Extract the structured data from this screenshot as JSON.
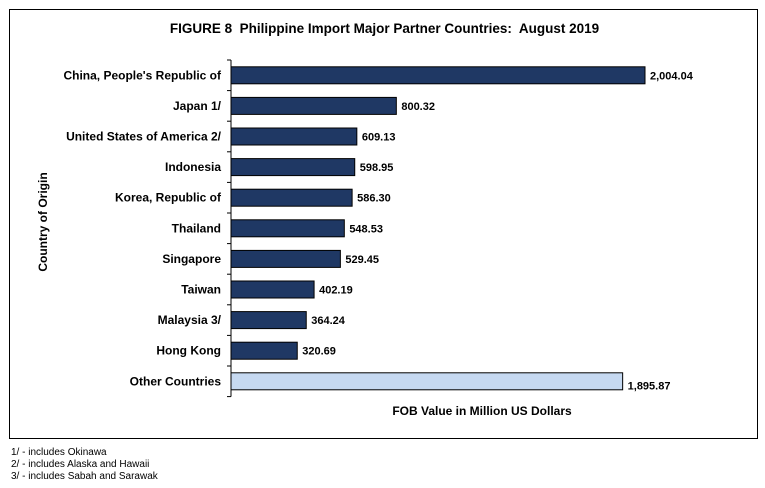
{
  "chart_data": {
    "type": "bar",
    "orientation": "horizontal",
    "title": "FIGURE 8  Philippine Import Major Partner Countries:  August 2019",
    "xlabel": "FOB Value in Million US Dollars",
    "ylabel": "Country of Origin",
    "xlim": [
      0,
      2100
    ],
    "grid": false,
    "categories": [
      "China, People's Republic of",
      "Japan 1/",
      "United States of America 2/",
      "Indonesia",
      "Korea, Republic of",
      "Thailand",
      "Singapore",
      "Taiwan",
      "Malaysia 3/",
      "Hong Kong",
      "Other Countries"
    ],
    "values": [
      2004.04,
      800.32,
      609.13,
      598.95,
      586.3,
      548.53,
      529.45,
      402.19,
      364.24,
      320.69,
      1895.87
    ],
    "value_labels": [
      "2,004.04",
      "800.32",
      "609.13",
      "598.95",
      "586.30",
      "548.53",
      "529.45",
      "402.19",
      "364.24",
      "320.69",
      "1,895.87"
    ],
    "colors": {
      "bar": "#1f3864",
      "other": "#c6d9f1",
      "border": "#000000"
    }
  },
  "footnotes": [
    "1/ - includes Okinawa",
    "2/ - includes Alaska and Hawaii",
    "3/ - includes Sabah and Sarawak"
  ]
}
